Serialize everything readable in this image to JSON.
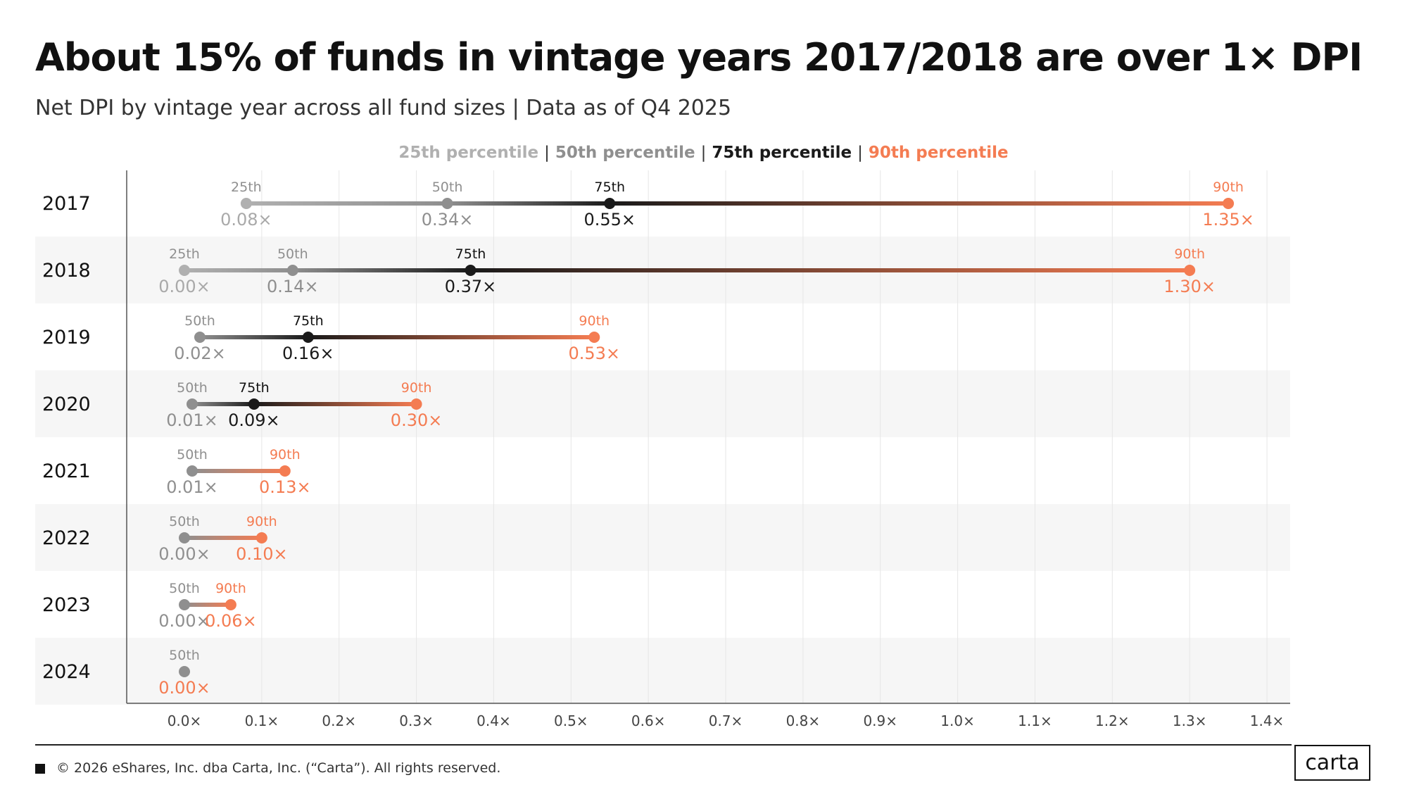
{
  "title": "About 15% of funds in vintage years 2017/2018 are over 1× DPI",
  "subtitle": "Net DPI by vintage year across all fund sizes | Data as of Q4 2025",
  "legend": [
    {
      "label": "25th percentile",
      "color": "#b0b0b0"
    },
    {
      "label": "50th percentile",
      "color": "#8f8f8f"
    },
    {
      "label": "75th percentile",
      "color": "#1a1a1a"
    },
    {
      "label": "90th percentile",
      "color": "#f47c52"
    }
  ],
  "legend_separator": "|",
  "footer": "© 2026 eShares, Inc. dba Carta, Inc. (“Carta”). All rights reserved.",
  "logo": "carta",
  "colors": {
    "p25": "#b0b0b0",
    "p50": "#8f8f8f",
    "p75": "#1a1a1a",
    "p90": "#f47c52",
    "band": "#f6f6f6",
    "grid": "#e6e6e6"
  },
  "chart_data": {
    "type": "dot-range",
    "xlim": [
      0,
      1.4
    ],
    "x_ticks": [
      "0.0×",
      "0.1×",
      "0.2×",
      "0.3×",
      "0.4×",
      "0.5×",
      "0.6×",
      "0.7×",
      "0.8×",
      "0.9×",
      "1.0×",
      "1.1×",
      "1.2×",
      "1.3×",
      "1.4×"
    ],
    "x_tick_values": [
      0,
      0.1,
      0.2,
      0.3,
      0.4,
      0.5,
      0.6,
      0.7,
      0.8,
      0.9,
      1.0,
      1.1,
      1.2,
      1.3,
      1.4
    ],
    "rows": [
      {
        "year": "2017",
        "points": [
          {
            "p": "25th",
            "value": 0.08,
            "label": "0.08×"
          },
          {
            "p": "50th",
            "value": 0.34,
            "label": "0.34×"
          },
          {
            "p": "75th",
            "value": 0.55,
            "label": "0.55×"
          },
          {
            "p": "90th",
            "value": 1.35,
            "label": "1.35×"
          }
        ]
      },
      {
        "year": "2018",
        "points": [
          {
            "p": "25th",
            "value": 0.0,
            "label": "0.00×"
          },
          {
            "p": "50th",
            "value": 0.14,
            "label": "0.14×"
          },
          {
            "p": "75th",
            "value": 0.37,
            "label": "0.37×"
          },
          {
            "p": "90th",
            "value": 1.3,
            "label": "1.30×"
          }
        ]
      },
      {
        "year": "2019",
        "points": [
          {
            "p": "50th",
            "value": 0.02,
            "label": "0.02×"
          },
          {
            "p": "75th",
            "value": 0.16,
            "label": "0.16×"
          },
          {
            "p": "90th",
            "value": 0.53,
            "label": "0.53×"
          }
        ]
      },
      {
        "year": "2020",
        "points": [
          {
            "p": "50th",
            "value": 0.01,
            "label": "0.01×"
          },
          {
            "p": "75th",
            "value": 0.09,
            "label": "0.09×"
          },
          {
            "p": "90th",
            "value": 0.3,
            "label": "0.30×"
          }
        ]
      },
      {
        "year": "2021",
        "points": [
          {
            "p": "50th",
            "value": 0.01,
            "label": "0.01×"
          },
          {
            "p": "90th",
            "value": 0.13,
            "label": "0.13×"
          }
        ]
      },
      {
        "year": "2022",
        "points": [
          {
            "p": "50th",
            "value": 0.0,
            "label": "0.00×"
          },
          {
            "p": "90th",
            "value": 0.1,
            "label": "0.10×"
          }
        ]
      },
      {
        "year": "2023",
        "points": [
          {
            "p": "50th",
            "value": 0.0,
            "label": "0.00×"
          },
          {
            "p": "90th",
            "value": 0.06,
            "label": "0.06×"
          }
        ]
      },
      {
        "year": "2024",
        "points": [
          {
            "p": "50th",
            "value": 0.0,
            "label": "0.00×"
          }
        ]
      }
    ]
  }
}
